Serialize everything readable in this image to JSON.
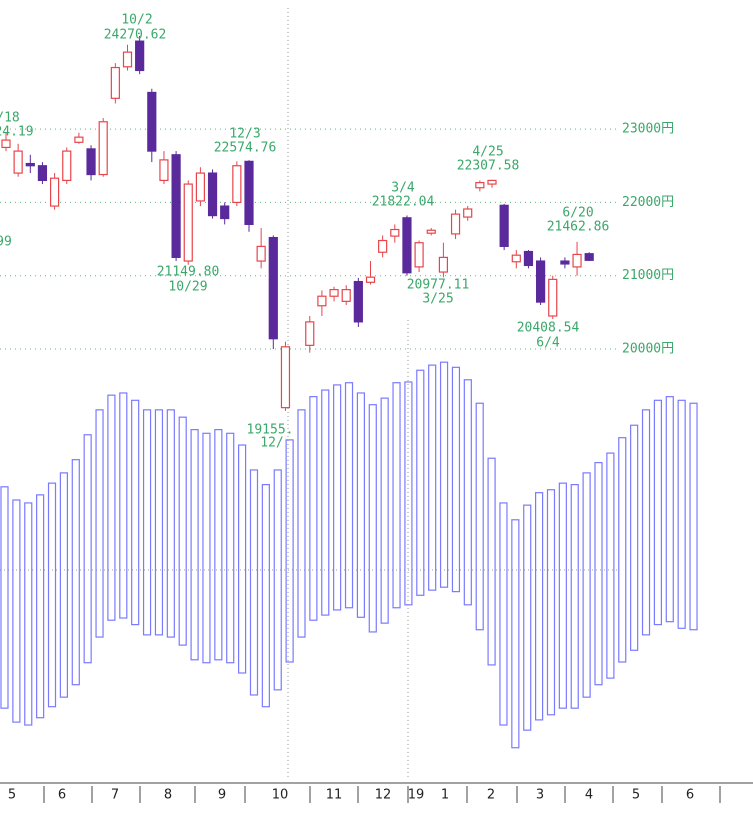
{
  "chart_data": {
    "type": "candlestick",
    "ylim": [
      14000,
      24600
    ],
    "yticks": [
      {
        "value": 23000,
        "label": "23000円"
      },
      {
        "value": 22000,
        "label": "22000円"
      },
      {
        "value": 21000,
        "label": "21000円"
      },
      {
        "value": 20000,
        "label": "20000円"
      }
    ],
    "grid": true,
    "up_color": "#e8454a",
    "down_color": "#5a2a9c",
    "candles": {
      "open": [
        22750,
        22400,
        22530,
        22500,
        21950,
        22300,
        22820,
        22730,
        22380,
        23420,
        23850,
        24200,
        23500,
        22300,
        22650,
        21200,
        22020,
        22400,
        21950,
        22000,
        22560,
        21200,
        21520,
        19200,
        20050,
        20590,
        20720,
        20650,
        20920,
        20910,
        21320,
        21540,
        21790,
        21120,
        21580,
        21050,
        21570,
        21800,
        22200,
        22250,
        21960,
        21190,
        21330,
        21200,
        20450,
        21200,
        21120,
        21300
      ],
      "high": [
        22950,
        22800,
        22650,
        22550,
        22400,
        22750,
        22950,
        22780,
        23150,
        23900,
        24150,
        24270.62,
        23550,
        22700,
        22700,
        22300,
        22480,
        22450,
        22000,
        22560,
        22574.76,
        21650,
        21550,
        20100,
        20450,
        20800,
        20850,
        20870,
        20970,
        21200,
        21550,
        21700,
        21822.04,
        21480,
        21650,
        21450,
        21900,
        21950,
        22300,
        22307.58,
        21980,
        21350,
        21350,
        21250,
        21000,
        21250,
        21462.86,
        21320
      ],
      "low": [
        22700,
        22350,
        22400,
        22250,
        21900,
        22250,
        22800,
        22300,
        22350,
        23350,
        23800,
        23750,
        22550,
        22250,
        21200,
        21149.8,
        21950,
        21780,
        21700,
        21950,
        21600,
        21100,
        20000,
        19155,
        19950,
        20450,
        20650,
        20600,
        20300,
        20880,
        21250,
        21450,
        21000,
        21050,
        21550,
        20977.11,
        21500,
        21750,
        22150,
        22200,
        21350,
        21100,
        21100,
        20600,
        20408.54,
        21100,
        21000,
        21200
      ],
      "close": [
        22850,
        22700,
        22500,
        22300,
        22330,
        22700,
        22890,
        22380,
        23100,
        23840,
        24050,
        23800,
        22700,
        22580,
        21250,
        22250,
        22400,
        21820,
        21780,
        22500,
        21700,
        21400,
        20140,
        20030,
        20370,
        20720,
        20810,
        20810,
        20370,
        20980,
        21480,
        21630,
        21040,
        21450,
        21620,
        21250,
        21840,
        21910,
        22270,
        22300,
        21400,
        21280,
        21140,
        20640,
        20950,
        21160,
        21290,
        21210
      ]
    },
    "band": {
      "color": "#7a7aff",
      "upper": [
        18120,
        17940,
        17900,
        18010,
        18170,
        18310,
        18490,
        18830,
        19170,
        19370,
        19400,
        19300,
        19170,
        19170,
        19170,
        19070,
        18900,
        18850,
        18900,
        18850,
        18690,
        18350,
        18150,
        18350,
        18760,
        19170,
        19350,
        19440,
        19510,
        19540,
        19400,
        19240,
        19330,
        19540,
        19550,
        19710,
        19780,
        19820,
        19750,
        19580,
        19260,
        18510,
        17900,
        17670,
        17870,
        18040,
        18080,
        18170,
        18150,
        18310,
        18450,
        18580,
        18790,
        18960,
        19170,
        19300,
        19350,
        19300,
        19260
      ],
      "lower": [
        15100,
        14910,
        14870,
        14970,
        15120,
        15250,
        15420,
        15720,
        16070,
        16300,
        16330,
        16240,
        16100,
        16100,
        16070,
        15960,
        15760,
        15720,
        15760,
        15720,
        15580,
        15280,
        15120,
        15350,
        15730,
        16070,
        16300,
        16370,
        16440,
        16470,
        16340,
        16140,
        16260,
        16470,
        16510,
        16640,
        16710,
        16750,
        16690,
        16510,
        16170,
        15690,
        14870,
        14560,
        14800,
        14940,
        15010,
        15100,
        15100,
        15250,
        15420,
        15510,
        15730,
        15890,
        16100,
        16240,
        16280,
        16190,
        16170
      ]
    },
    "annotations": [
      "/18",
      "24.19",
      "99",
      "10/2",
      "24270.62",
      "12/3",
      "22574.76",
      "21149.80",
      "10/29",
      "19155.",
      "12/",
      "3/4",
      "21822.04",
      "20977.11",
      "3/25",
      "4/25",
      "22307.58",
      "20408.54",
      "6/4",
      "6/20",
      "21462.86"
    ],
    "months": [
      "5",
      "6",
      "7",
      "8",
      "9",
      "10",
      "11",
      "12",
      "19",
      "1",
      "2",
      "3",
      "4",
      "5",
      "6"
    ]
  }
}
